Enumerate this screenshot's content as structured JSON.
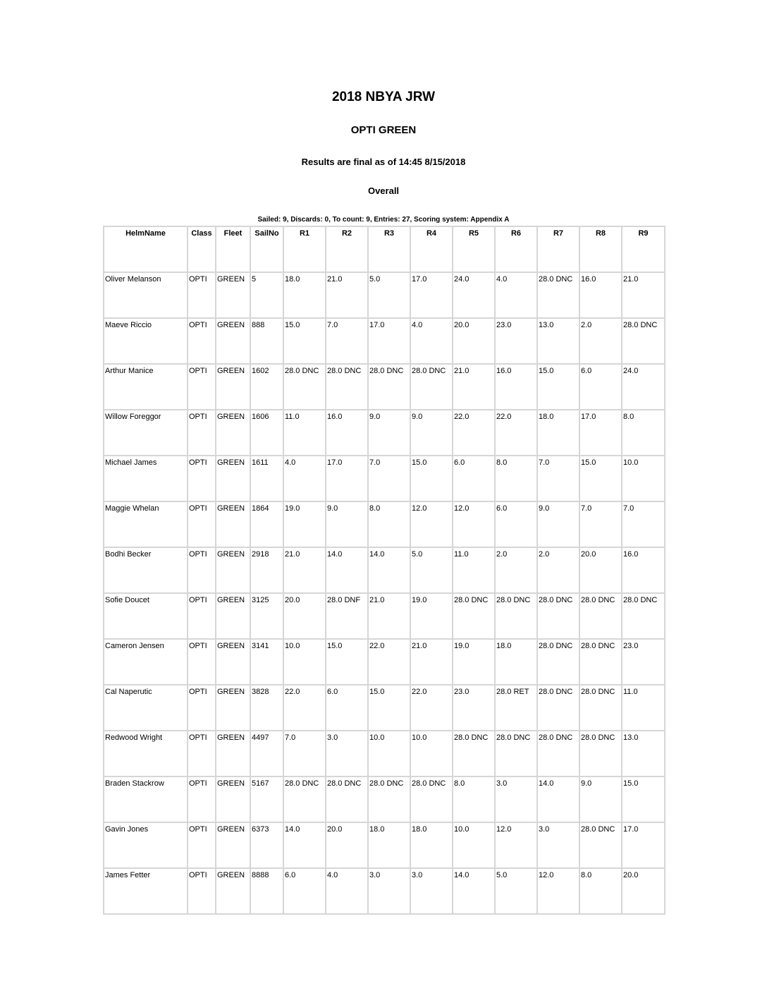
{
  "header": {
    "title": "2018 NBYA JRW",
    "subtitle": "OPTI GREEN",
    "status": "Results are final as of 14:45 8/15/2018",
    "section": "Overall"
  },
  "table": {
    "caption": "Sailed: 9, Discards: 0, To count: 9, Entries: 27, Scoring system: Appendix A",
    "header": [
      "HelmName",
      "Class",
      "Fleet",
      "SailNo",
      "R1",
      "R2",
      "R3",
      "R4",
      "R5",
      "R6",
      "R7",
      "R8",
      "R9"
    ],
    "rows": [
      [
        "Oliver Melanson",
        "OPTI",
        "GREEN",
        "5",
        "18.0",
        "21.0",
        "5.0",
        "17.0",
        "24.0",
        "4.0",
        "28.0 DNC",
        "16.0",
        "21.0"
      ],
      [
        "Maeve Riccio",
        "OPTI",
        "GREEN",
        "888",
        "15.0",
        "7.0",
        "17.0",
        "4.0",
        "20.0",
        "23.0",
        "13.0",
        "2.0",
        "28.0 DNC"
      ],
      [
        "Arthur Manice",
        "OPTI",
        "GREEN",
        "1602",
        "28.0 DNC",
        "28.0 DNC",
        "28.0 DNC",
        "28.0 DNC",
        "21.0",
        "16.0",
        "15.0",
        "6.0",
        "24.0"
      ],
      [
        "Willow Foreggor",
        "OPTI",
        "GREEN",
        "1606",
        "11.0",
        "16.0",
        "9.0",
        "9.0",
        "22.0",
        "22.0",
        "18.0",
        "17.0",
        "8.0"
      ],
      [
        "Michael James",
        "OPTI",
        "GREEN",
        "1611",
        "4.0",
        "17.0",
        "7.0",
        "15.0",
        "6.0",
        "8.0",
        "7.0",
        "15.0",
        "10.0"
      ],
      [
        "Maggie Whelan",
        "OPTI",
        "GREEN",
        "1864",
        "19.0",
        "9.0",
        "8.0",
        "12.0",
        "12.0",
        "6.0",
        "9.0",
        "7.0",
        "7.0"
      ],
      [
        "Bodhi Becker",
        "OPTI",
        "GREEN",
        "2918",
        "21.0",
        "14.0",
        "14.0",
        "5.0",
        "11.0",
        "2.0",
        "2.0",
        "20.0",
        "16.0"
      ],
      [
        "Sofie Doucet",
        "OPTI",
        "GREEN",
        "3125",
        "20.0",
        "28.0 DNF",
        "21.0",
        "19.0",
        "28.0 DNC",
        "28.0 DNC",
        "28.0 DNC",
        "28.0 DNC",
        "28.0 DNC"
      ],
      [
        "Cameron Jensen",
        "OPTI",
        "GREEN",
        "3141",
        "10.0",
        "15.0",
        "22.0",
        "21.0",
        "19.0",
        "18.0",
        "28.0 DNC",
        "28.0 DNC",
        "23.0"
      ],
      [
        "Cal Naperutic",
        "OPTI",
        "GREEN",
        "3828",
        "22.0",
        "6.0",
        "15.0",
        "22.0",
        "23.0",
        "28.0 RET",
        "28.0 DNC",
        "28.0 DNC",
        "11.0"
      ],
      [
        "Redwood Wright",
        "OPTI",
        "GREEN",
        "4497",
        "7.0",
        "3.0",
        "10.0",
        "10.0",
        "28.0 DNC",
        "28.0 DNC",
        "28.0 DNC",
        "28.0 DNC",
        "13.0"
      ],
      [
        "Braden Stackrow",
        "OPTI",
        "GREEN",
        "5167",
        "28.0 DNC",
        "28.0 DNC",
        "28.0 DNC",
        "28.0 DNC",
        "8.0",
        "3.0",
        "14.0",
        "9.0",
        "15.0"
      ],
      [
        "Gavin Jones",
        "OPTI",
        "GREEN",
        "6373",
        "14.0",
        "20.0",
        "18.0",
        "18.0",
        "10.0",
        "12.0",
        "3.0",
        "28.0 DNC",
        "17.0"
      ],
      [
        "James Fetter",
        "OPTI",
        "GREEN",
        "8888",
        "6.0",
        "4.0",
        "3.0",
        "3.0",
        "14.0",
        "5.0",
        "12.0",
        "8.0",
        "20.0"
      ]
    ]
  }
}
